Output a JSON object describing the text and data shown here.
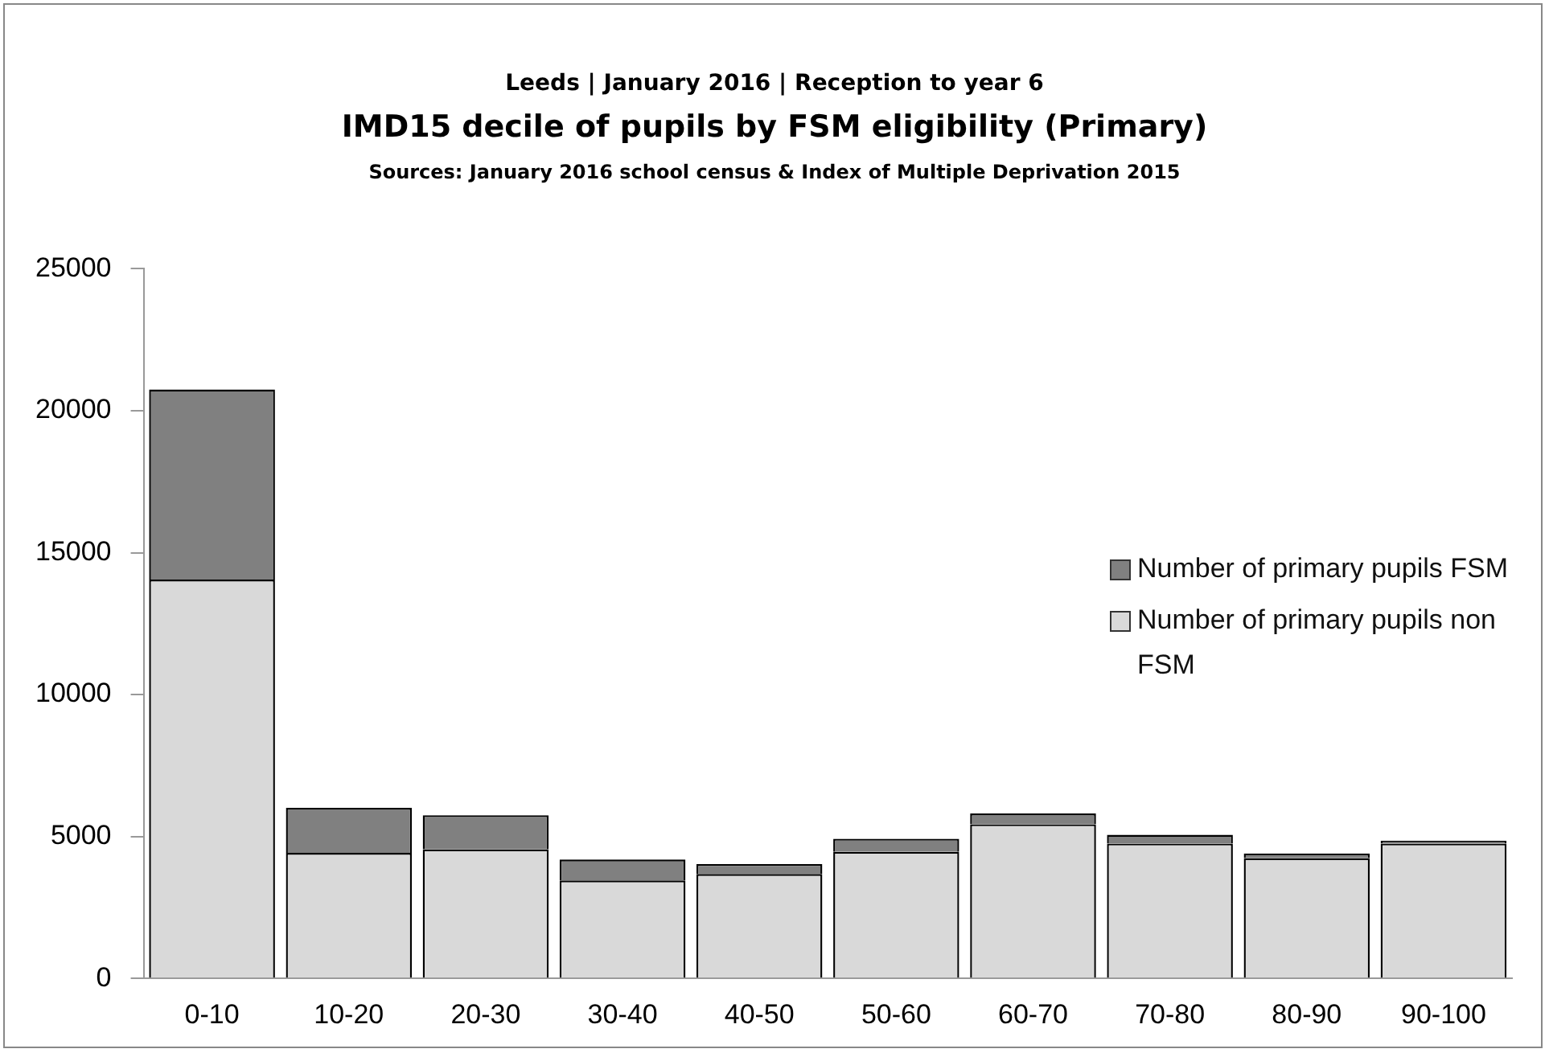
{
  "chart_data": {
    "type": "bar",
    "subtitle": "Leeds | January 2016 | Reception to year 6",
    "title": "IMD15 decile of pupils by FSM eligibility (Primary)",
    "annotations": [
      "Sources: January 2016 school census & Index of Multiple Deprivation 2015"
    ],
    "categories": [
      "0-10",
      "10-20",
      "20-30",
      "30-40",
      "40-50",
      "50-60",
      "60-70",
      "70-80",
      "80-90",
      "90-100"
    ],
    "stacked": true,
    "series": [
      {
        "name": "Number of primary pupils non FSM",
        "color": "#d9d9d9",
        "values": [
          14050,
          4420,
          4550,
          3450,
          3680,
          4460,
          5430,
          4750,
          4240,
          4750
        ]
      },
      {
        "name": "Number of primary pupils FSM",
        "color": "#808080",
        "values": [
          6700,
          1590,
          1200,
          740,
          350,
          460,
          380,
          310,
          160,
          100
        ]
      }
    ],
    "ylim": [
      0,
      25000
    ],
    "yticks": [
      0,
      5000,
      10000,
      15000,
      20000,
      25000
    ],
    "grid": false,
    "legend": "right"
  }
}
